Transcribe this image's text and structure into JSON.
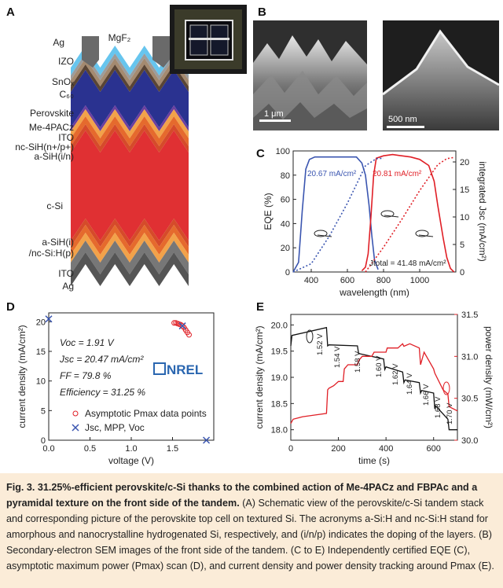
{
  "panel_labels": {
    "a": "A",
    "b": "B",
    "c": "C",
    "d": "D",
    "e": "E"
  },
  "panel_a": {
    "layers_top": [
      "Ag",
      "MgF₂",
      "IZO",
      "SnOₓ",
      "C₆₀",
      "Perovskite",
      "Me-4PACz",
      "ITO",
      "nc-SiH(n+/p+)",
      "a-SiH(i/n)"
    ],
    "bulk": "c-Si",
    "layers_bottom": [
      "a-SiH(i)",
      "/nc-Si:H(p)",
      "ITO",
      "Ag"
    ],
    "colors": {
      "ag": "#6a6a6a",
      "mgf2": "#67c5ee",
      "izo": "#9c9c9c",
      "sno": "#a48a70",
      "c60": "#5a4535",
      "perovskite": "#2a3290",
      "metpacz": "#6b3fa0",
      "ito": "#f2a24a",
      "ncsi": "#e56a2d",
      "asi": "#d54b2a",
      "csi": "#e03033"
    }
  },
  "panel_b": {
    "scale_left": "1 μm",
    "scale_right": "500 nm"
  },
  "panel_c": {
    "xlabel": "wavelength (nm)",
    "ylabel_left": "EQE (%)",
    "ylabel_right": "integrated Jsc (mA/cm²)",
    "label_blue": "20.67 mA/cm²",
    "label_red": "20.81 mA/cm²",
    "label_total": "Jtotal = 41.48 mA/cm²",
    "x_ticks": [
      "400",
      "600",
      "800",
      "1000"
    ],
    "y_ticks": [
      "0",
      "20",
      "40",
      "60",
      "80",
      "100"
    ],
    "y2_ticks": [
      "0",
      "5",
      "10",
      "15",
      "20"
    ],
    "colors": {
      "top": "#3a55b0",
      "bottom": "#e01f26"
    }
  },
  "chart_data": [
    {
      "type": "line",
      "title": "",
      "xlabel": "wavelength (nm)",
      "ylabel": "EQE (%)",
      "y2label": "integrated Jsc (mA/cm²)",
      "xlim": [
        300,
        1200
      ],
      "ylim": [
        0,
        100
      ],
      "y2lim": [
        0,
        22
      ],
      "series": [
        {
          "style": "solid",
          "axis": "left",
          "color": "#3a55b0",
          "x": [
            300,
            330,
            350,
            370,
            390,
            420,
            460,
            500,
            560,
            600,
            650,
            680,
            700,
            720,
            735,
            750,
            770
          ],
          "y": [
            0,
            8,
            50,
            85,
            93,
            95,
            95,
            95,
            95,
            95,
            95,
            90,
            80,
            55,
            30,
            10,
            2
          ]
        },
        {
          "style": "solid",
          "axis": "left",
          "color": "#e01f26",
          "x": [
            680,
            700,
            715,
            730,
            745,
            760,
            800,
            850,
            900,
            950,
            1000,
            1050,
            1080,
            1100,
            1130,
            1150,
            1170,
            1190
          ],
          "y": [
            1,
            4,
            15,
            45,
            80,
            94,
            96,
            97,
            96,
            95,
            93,
            88,
            75,
            55,
            28,
            12,
            3,
            0
          ]
        },
        {
          "style": "dotted",
          "axis": "right",
          "color": "#3a55b0",
          "x": [
            300,
            400,
            500,
            600,
            700,
            760,
            800
          ],
          "y": [
            0,
            1.5,
            6.5,
            12.5,
            19.3,
            20.6,
            20.67
          ]
        },
        {
          "style": "dotted",
          "axis": "right",
          "color": "#e01f26",
          "x": [
            700,
            800,
            900,
            1000,
            1100,
            1150,
            1190
          ],
          "y": [
            0,
            4.5,
            9.5,
            14.8,
            19.5,
            20.6,
            20.81
          ]
        }
      ]
    },
    {
      "type": "scatter",
      "xlabel": "voltage (V)",
      "ylabel": "current density (mA/cm²)",
      "xlim": [
        0,
        2.0
      ],
      "ylim": [
        0,
        21.5
      ],
      "series": [
        {
          "name": "Asymptotic Pmax data points",
          "marker": "circle",
          "color": "#e01f26",
          "x": [
            1.52,
            1.54,
            1.56,
            1.58,
            1.6,
            1.62,
            1.64,
            1.66,
            1.68,
            1.7
          ],
          "y": [
            19.8,
            19.8,
            19.7,
            19.6,
            19.5,
            19.3,
            19.0,
            18.6,
            18.2,
            17.8
          ]
        },
        {
          "name": "Jsc, MPP, Voc",
          "marker": "x",
          "color": "#3a55b0",
          "x": [
            0.0,
            1.62,
            1.91
          ],
          "y": [
            20.47,
            19.3,
            0.0
          ]
        }
      ]
    },
    {
      "type": "line",
      "xlabel": "time (s)",
      "ylabel": "current density (mA/cm²)",
      "y2label": "power density (mW/cm²)",
      "xlim": [
        0,
        700
      ],
      "ylim": [
        17.8,
        20.2
      ],
      "y2lim": [
        30.0,
        31.5
      ],
      "series": [
        {
          "axis": "left",
          "color": "#111111",
          "x": [
            0,
            5,
            150,
            155,
            160,
            280,
            285,
            290,
            390,
            395,
            400,
            470,
            475,
            480,
            540,
            545,
            550,
            600,
            605,
            610,
            660,
            665,
            700
          ],
          "y": [
            19.6,
            19.8,
            19.95,
            19.6,
            19.62,
            19.6,
            19.45,
            19.45,
            19.35,
            19.15,
            19.2,
            19.1,
            18.9,
            18.95,
            18.9,
            18.7,
            18.75,
            18.7,
            18.4,
            18.45,
            18.2,
            18.0,
            18.0
          ]
        },
        {
          "axis": "right",
          "color": "#e01f26",
          "x": [
            0,
            10,
            50,
            100,
            150,
            155,
            160,
            180,
            200,
            220,
            225,
            240,
            280,
            285,
            300,
            340,
            350,
            400,
            405,
            450,
            470,
            475,
            500,
            540,
            545,
            560,
            600,
            605,
            640,
            660,
            665,
            700
          ],
          "y": [
            30.2,
            30.25,
            30.28,
            30.3,
            30.32,
            30.6,
            30.62,
            30.65,
            30.7,
            30.7,
            30.85,
            30.9,
            30.9,
            30.95,
            31.0,
            31.0,
            31.05,
            31.05,
            31.1,
            31.1,
            31.15,
            31.12,
            31.15,
            31.1,
            30.9,
            31.05,
            30.85,
            30.8,
            30.6,
            30.55,
            30.4,
            30.35
          ]
        }
      ]
    }
  ],
  "panel_d": {
    "xlabel": "voltage (V)",
    "ylabel": "current density (mA/cm²)",
    "voc": "Voc = 1.91 V",
    "jsc": "Jsc = 20.47 mA/cm²",
    "ff": "FF = 79.8 %",
    "eff": "Efficiency = 31.25 %",
    "legend_red": "Asymptotic Pmax data points",
    "legend_blue": "Jsc, MPP, Voc",
    "logo": "NREL",
    "x_ticks": [
      "0.0",
      "0.5",
      "1.0",
      "1.5"
    ],
    "y_ticks": [
      "0",
      "5",
      "10",
      "15",
      "20"
    ]
  },
  "panel_e": {
    "xlabel": "time (s)",
    "ylabel_left": "current density (mA/cm²)",
    "ylabel_right": "power density (mW/cm²)",
    "x_ticks": [
      "0",
      "200",
      "400",
      "600"
    ],
    "y_ticks": [
      "18.0",
      "18.5",
      "19.0",
      "19.5",
      "20.0"
    ],
    "y2_ticks": [
      "30.0",
      "30.5",
      "31.0",
      "31.5"
    ],
    "voltages": [
      "1.52 V",
      "1.54 V",
      "1.58 V",
      "1.60 V",
      "1.62 V",
      "1.64 V",
      "1.66 V",
      "1.68 V",
      "1.70 V"
    ]
  },
  "caption": {
    "title": "Fig. 3. 31.25%-efficient perovskite/c-Si thanks to the combined action of Me-4PACz and FBPAc and a pyramidal texture on the front side of the tandem.",
    "body": "(A) Schematic view of the perovskite/c-Si tandem stack and corresponding picture of the perovskite top cell on textured Si. The acronyms a-Si:H and nc-Si:H stand for amorphous and nanocrystalline hydrogenated Si, respectively, and (i/n/p) indicates the doping of the layers. (B) Secondary-electron SEM images of the front side of the tandem. (C to E) Independently certified EQE (C), asymptotic maximum power (Pmax) scan (D), and current density and power density tracking around Pmax (E)."
  }
}
